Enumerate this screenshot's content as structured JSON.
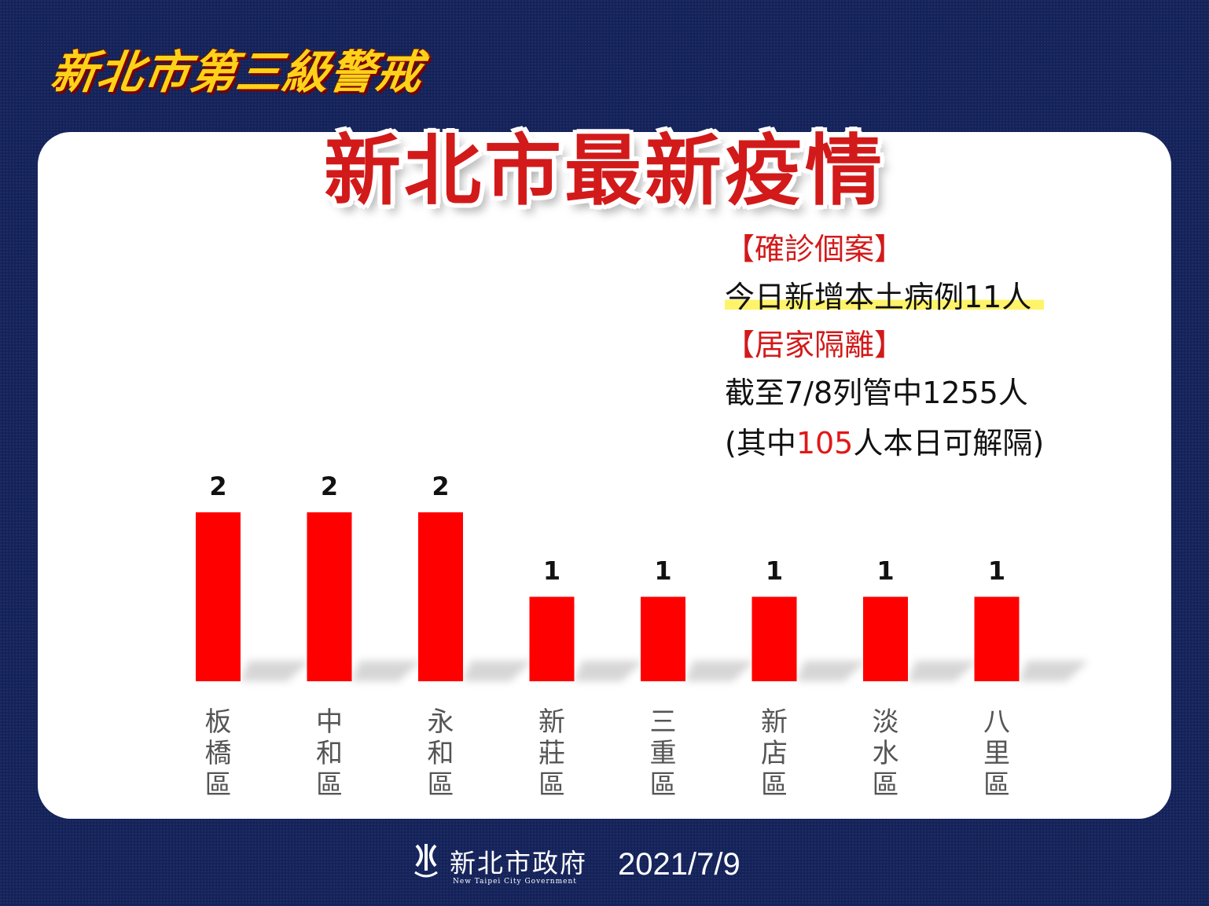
{
  "banner": "新北市第三級警戒",
  "title": "新北市最新疫情",
  "info": {
    "confirmed_heading": "【確診個案】",
    "confirmed_line": "今日新增本土病例11人",
    "quarantine_heading": "【居家隔離】",
    "quarantine_line": "截至7/8列管中1255人",
    "release_prefix": "(其中",
    "release_number": "105",
    "release_suffix": "人本日可解隔)"
  },
  "chart_data": {
    "type": "bar",
    "categories": [
      "板橋區",
      "中和區",
      "永和區",
      "新莊區",
      "三重區",
      "新店區",
      "淡水區",
      "八里區"
    ],
    "values": [
      2,
      2,
      2,
      1,
      1,
      1,
      1,
      1
    ],
    "ylim": [
      0,
      2
    ],
    "color": "#ff0000",
    "grid": false,
    "legend": "none"
  },
  "footer": {
    "org_name": "新北市政府",
    "org_name_en": "New Taipei City Government",
    "date": "2021/7/9"
  },
  "colors": {
    "background": "#14225a",
    "panel": "#ffffff",
    "accent_red": "#d21a1a",
    "banner_yellow": "#ffd21a",
    "highlight": "#fff36a"
  }
}
